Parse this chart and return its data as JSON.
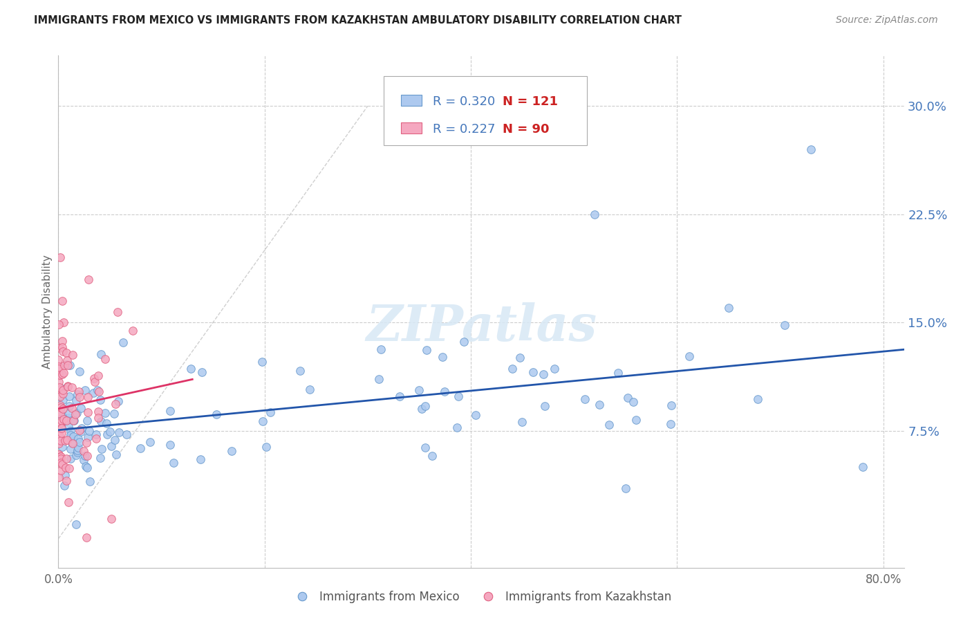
{
  "title": "IMMIGRANTS FROM MEXICO VS IMMIGRANTS FROM KAZAKHSTAN AMBULATORY DISABILITY CORRELATION CHART",
  "source": "Source: ZipAtlas.com",
  "ylabel": "Ambulatory Disability",
  "right_yticks": [
    "30.0%",
    "22.5%",
    "15.0%",
    "7.5%"
  ],
  "right_ytick_vals": [
    0.3,
    0.225,
    0.15,
    0.075
  ],
  "xlim": [
    0.0,
    0.82
  ],
  "ylim": [
    -0.02,
    0.335
  ],
  "legend_r_mexico": "0.320",
  "legend_n_mexico": "121",
  "legend_r_kaz": "0.227",
  "legend_n_kaz": "90",
  "scatter_mexico_color": "#adc9ef",
  "scatter_mexico_edge": "#6699cc",
  "scatter_kaz_color": "#f5a8c0",
  "scatter_kaz_edge": "#e06080",
  "trend_mexico_color": "#2255aa",
  "trend_kaz_color": "#dd3366",
  "diagonal_color": "#bbbbbb",
  "background_color": "#ffffff",
  "grid_color": "#cccccc",
  "right_axis_color": "#4477bb",
  "title_color": "#222222",
  "source_color": "#888888",
  "legend_r_color": "#4477bb",
  "legend_n_color": "#cc2222",
  "bottom_legend_mexico_color": "#adc9ef",
  "bottom_legend_kaz_color": "#f5a8c0"
}
